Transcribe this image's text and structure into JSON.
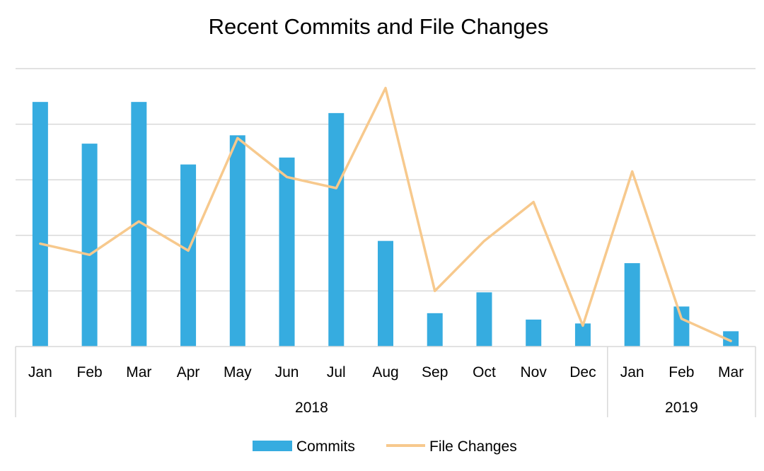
{
  "chart_data": {
    "type": "bar",
    "title": "Recent Commits and File Changes",
    "categories": [
      "Jan",
      "Feb",
      "Mar",
      "Apr",
      "May",
      "Jun",
      "Jul",
      "Aug",
      "Sep",
      "Oct",
      "Nov",
      "Dec",
      "Jan",
      "Feb",
      "Mar"
    ],
    "category_groups": [
      {
        "label": "2018",
        "count": 12
      },
      {
        "label": "2019",
        "count": 3
      }
    ],
    "series": [
      {
        "name": "Commits",
        "type": "bar",
        "color": "#36ACE0",
        "values": [
          88,
          73,
          88,
          65.5,
          76,
          68,
          84,
          38,
          12,
          19.5,
          9.7,
          8.3,
          30,
          14.4,
          5.5
        ]
      },
      {
        "name": "File Changes",
        "type": "line",
        "color": "#F7C98D",
        "values": [
          37,
          33,
          45,
          34.5,
          75,
          61,
          57,
          93,
          20,
          38,
          52,
          7.5,
          63,
          10,
          2
        ]
      }
    ],
    "ylim": [
      0,
      100
    ],
    "y_gridlines": [
      20,
      40,
      60,
      80,
      100
    ],
    "grid": true,
    "y_axis_labels_shown": false,
    "legend": "bottom"
  }
}
